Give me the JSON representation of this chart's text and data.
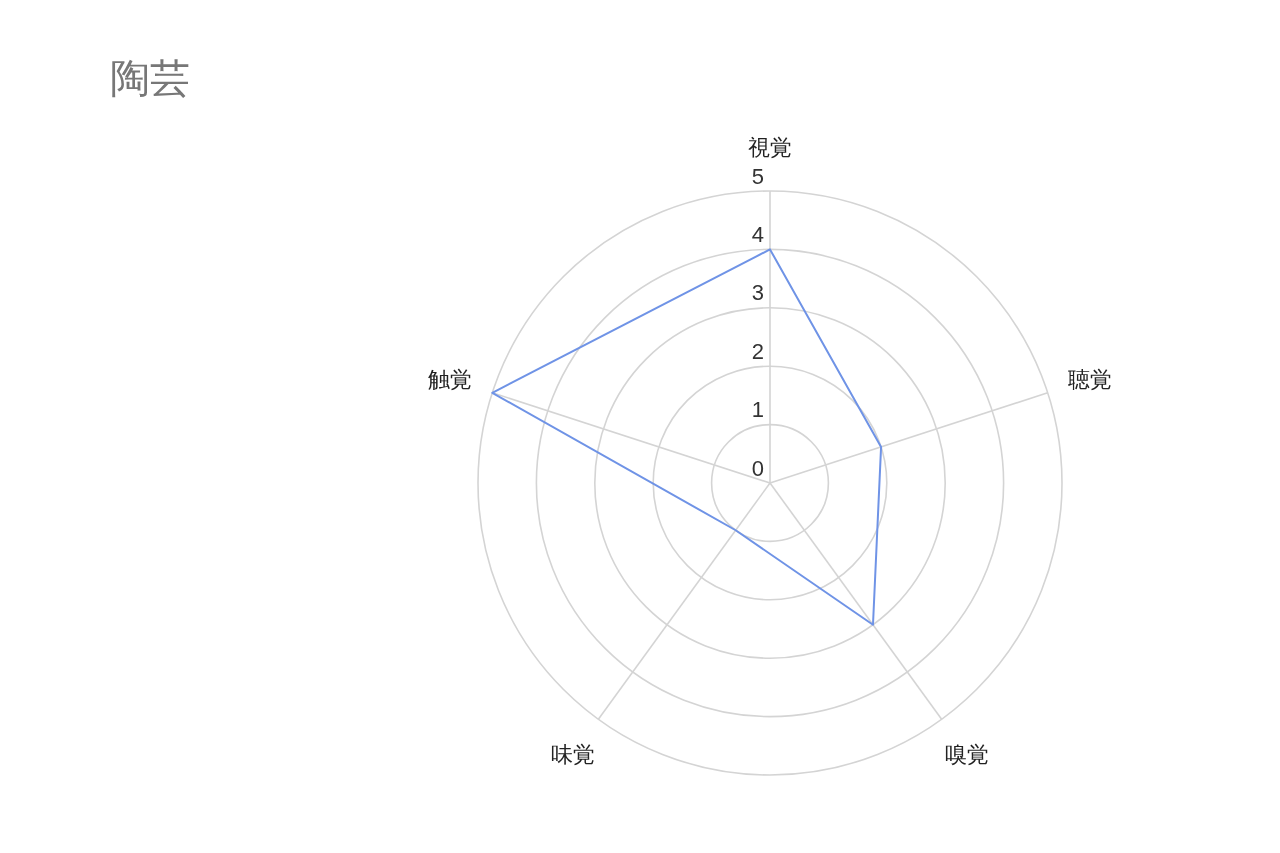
{
  "chart_data": {
    "type": "radar",
    "title": "陶芸",
    "categories": [
      "視覚",
      "聴覚",
      "嗅覚",
      "味覚",
      "触覚"
    ],
    "series": [
      {
        "color": "#6f93e6",
        "values": [
          4,
          2,
          3,
          1,
          5
        ]
      }
    ],
    "ylim": [
      0,
      5
    ],
    "yticks": [
      0,
      1,
      2,
      3,
      4,
      5
    ],
    "grid": true
  }
}
